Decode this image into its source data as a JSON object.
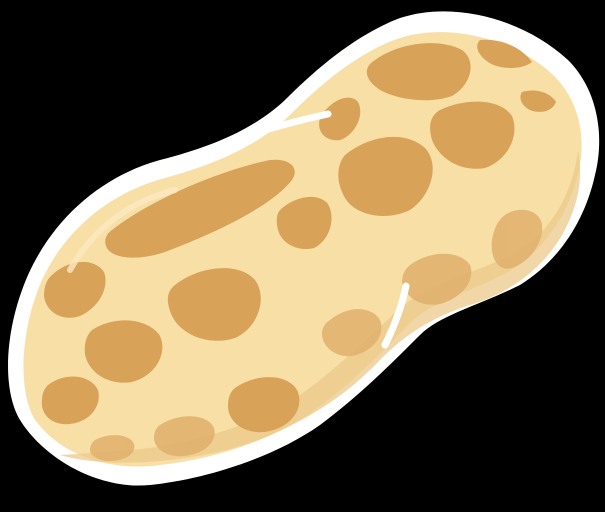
{
  "illustration": {
    "subject": "peanut-icon",
    "colors": {
      "background": "#000000",
      "outline": "#ffffff",
      "shell": "#f7dfa6",
      "shell_shadow": "#e9c98a",
      "pit": "#d9a259",
      "pit_dark": "#c98f45"
    }
  }
}
